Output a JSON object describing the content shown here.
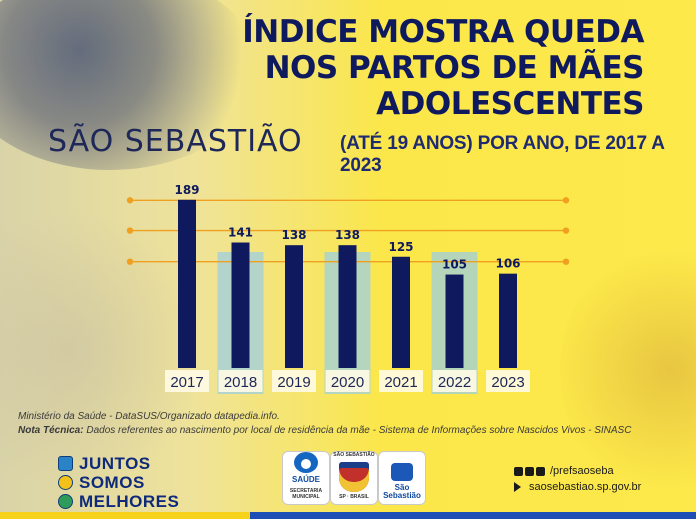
{
  "header": {
    "title_lines": [
      "ÍNDICE MOSTRA QUEDA",
      "NOS PARTOS DE MÃES",
      "ADOLESCENTES"
    ],
    "city": "SÃO SEBASTIÃO",
    "subtitle": "(ATÉ 19 ANOS) POR ANO, DE 2017 A 2023"
  },
  "chart_data": {
    "type": "bar",
    "title": "ÍNDICE MOSTRA QUEDA NOS PARTOS DE MÃES ADOLESCENTES",
    "subtitle": "(ATÉ 19 ANOS) POR ANO, DE 2017 A 2023",
    "categories": [
      "2017",
      "2018",
      "2019",
      "2020",
      "2021",
      "2022",
      "2023"
    ],
    "values": [
      189,
      141,
      138,
      138,
      125,
      105,
      106
    ],
    "value_labels": [
      "189",
      "141",
      "138",
      "138",
      "125",
      "105",
      "106"
    ],
    "xlabel": "",
    "ylabel": "",
    "ylim": [
      0,
      200
    ],
    "grid": true,
    "legend": "none",
    "colors": {
      "bar": "#0f1a5e",
      "grid": "#f0a020",
      "highlight_band": "#9ecfe0",
      "label_box": "#fffbe6"
    }
  },
  "sources": {
    "line1": "Ministério da Saúde - DataSUS/Organizado datapedia.info.",
    "line2_label": "Nota Técnica:",
    "line2_text": " Dados referentes ao nascimento por local de residência da mãe - Sistema de Informações sobre Nascidos Vivos - SINASC"
  },
  "footer": {
    "brand": [
      "JUNTOS",
      "SOMOS",
      "MELHORES"
    ],
    "logos": {
      "saude_label": "SAÚDE",
      "saude_sub": "SECRETARIA MUNICIPAL",
      "brasao_top": "SÃO SEBASTIÃO",
      "brasao_bottom": "SP · BRASIL",
      "sao_label": "São Sebastião"
    },
    "social": "/prefsaoseba",
    "website": "saosebastiao.sp.gov.br"
  }
}
